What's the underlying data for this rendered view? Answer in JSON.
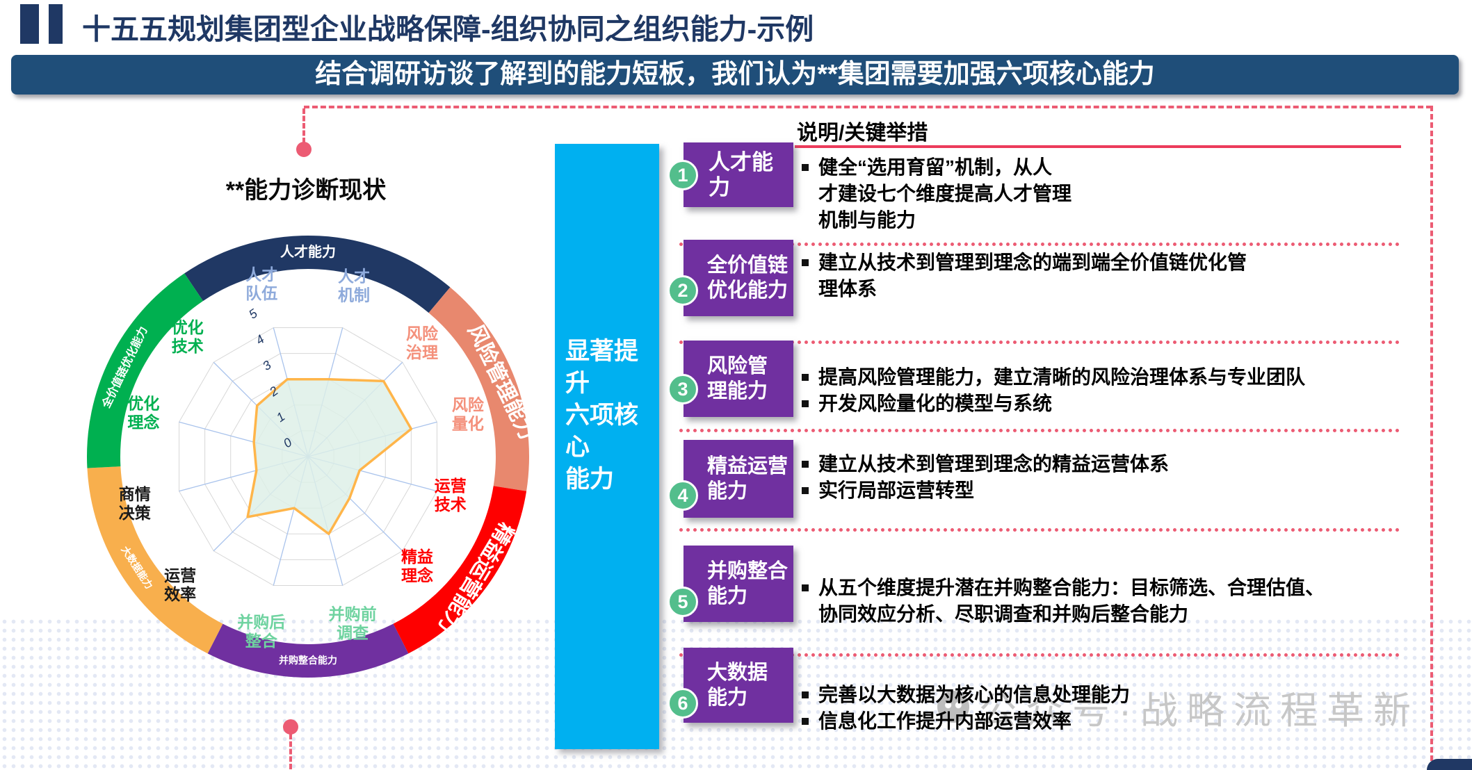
{
  "slide": {
    "title": "十五五规划集团型企业战略保障-组织协同之组织能力-示例",
    "banner": "结合调研访谈了解到的能力短板，我们认为**集团需要加强六项核心能力"
  },
  "left_panel": {
    "chart_title": "**能力诊断现状"
  },
  "middle_bar": {
    "label": "显著提升\n六项核心\n能力"
  },
  "right_panel": {
    "header": "说明/关键举措",
    "rows": [
      {
        "num": "1",
        "title": "人才能力",
        "bullets": [
          "健全“选用育留”机制，从人\n才建设七个维度提高人才管理\n机制与能力",
          null
        ]
      },
      {
        "num": "2",
        "title": "全价值链\n优化能力",
        "bullets": [
          "建立从技术到管理到理念的端到端全价值链优化管\n理体系",
          null
        ]
      },
      {
        "num": "3",
        "title": "风险管\n理能力",
        "bullets": [
          "提高风险管理能力，建立清晰的风险治理体系与专业团队",
          "开发风险量化的模型与系统"
        ]
      },
      {
        "num": "4",
        "title": "精益运营\n能力",
        "bullets": [
          "建立从技术到管理到理念的精益运营体系",
          "实行局部运营转型"
        ]
      },
      {
        "num": "5",
        "title": "并购整合\n能力",
        "bullets": [
          "从五个维度提升潜在并购整合能力：目标筛选、合理估值、\n协同效应分析、尽职调查和并购后整合能力",
          null
        ]
      },
      {
        "num": "6",
        "title": "大数据\n能力",
        "bullets": [
          "完善以大数据为核心的信息处理能力",
          "信息化工作提升内部运营效率"
        ]
      }
    ]
  },
  "watermark": {
    "text": "公众号·战略流程革新"
  },
  "colors": {
    "title_navy": "#1F3864",
    "banner_bg": "#1F4E79",
    "accent_cyan": "#00B0F0",
    "box_purple": "#7030A0",
    "number_green": "#53BE8C",
    "dash_pink": "#EC5B73",
    "underline_red": "#EC3B5B"
  },
  "chart_data": {
    "type": "radar",
    "title": "**能力诊断现状",
    "max": 5,
    "axis_range": [
      0,
      5
    ],
    "ticks": [
      "0",
      "1",
      "2",
      "3",
      "4",
      "5"
    ],
    "start_angle_deg": 15,
    "step_deg": 30,
    "grid": true,
    "values": [
      3,
      4,
      4,
      2,
      2.2,
      3,
      2,
      3.2,
      2,
      2.1,
      2.7,
      3
    ],
    "series_style": {
      "stroke": "#FFB54A",
      "fill": "#DDEFE6"
    },
    "axes": [
      {
        "label": "人才\n机制",
        "color": "#8EAADB",
        "label_r": 255
      },
      {
        "label": "风险\n治理",
        "color": "#F4907B",
        "label_r": 232
      },
      {
        "label": "风险\n量化",
        "color": "#F4907B",
        "label_r": 238
      },
      {
        "label": "运营\n技术",
        "color": "#FF0000",
        "label_r": 212
      },
      {
        "label": "精益\n理念",
        "color": "#FF0000",
        "label_r": 222
      },
      {
        "label": "并购前\n调查",
        "color": "#6FD3A0",
        "label_r": 248
      },
      {
        "label": "并购后\n整合",
        "color": "#6FD3A0",
        "label_r": 260
      },
      {
        "label": "运营\n效率",
        "color": "#1a1a1a",
        "label_r": 260
      },
      {
        "label": "商情\n决策",
        "color": "#1a1a1a",
        "label_r": 258
      },
      {
        "label": "优化\n理念",
        "color": "#00B050",
        "label_r": 245
      },
      {
        "label": "优化\n技术",
        "color": "#00B050",
        "label_r": 245
      },
      {
        "label": "人才\n队伍",
        "color": "#8EAADB",
        "label_r": 258
      }
    ],
    "ring_segments": [
      {
        "label": "人才能力",
        "color": "#203864",
        "start_deg": -34,
        "end_deg": 40,
        "label_angle_deg": 0,
        "label_rot_deg": 0,
        "font_px": 20
      },
      {
        "label": "风险管理能力",
        "color": "#E8886E",
        "start_deg": 40,
        "end_deg": 99,
        "label_angle_deg": 69,
        "label_rot_deg": 64,
        "font_px": 30
      },
      {
        "label": "精益运营能力",
        "color": "#FE0000",
        "start_deg": 99,
        "end_deg": 153,
        "label_angle_deg": 126,
        "label_rot_deg": 121,
        "font_px": 30
      },
      {
        "label": "并购整合能力",
        "color": "#7030A0",
        "start_deg": 153,
        "end_deg": 207,
        "label_angle_deg": 180,
        "label_rot_deg": 0,
        "font_px": 14
      },
      {
        "label": "大数据能力",
        "color": "#F8AF4D",
        "start_deg": 207,
        "end_deg": 267,
        "label_angle_deg": 237,
        "label_rot_deg": 57,
        "font_px": 14
      },
      {
        "label": "全价值链优化能力",
        "color": "#00B050",
        "start_deg": 267,
        "end_deg": 326,
        "label_angle_deg": 296,
        "label_rot_deg": -64,
        "font_px": 16
      }
    ]
  }
}
